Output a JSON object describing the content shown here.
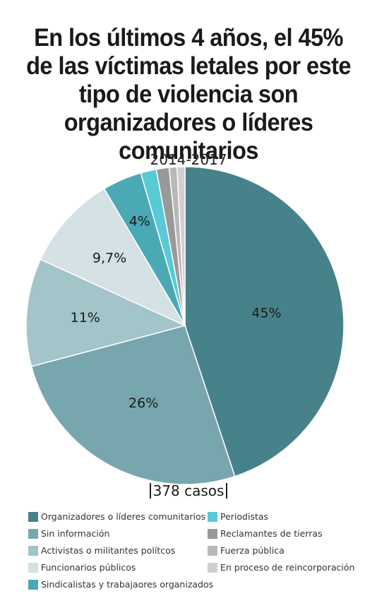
{
  "chart_data": {
    "type": "pie",
    "title": "En los últimos 4 años, el 45% de las víctimas letales por este tipo de violencia son organizadores o líderes comunitarios",
    "subtitle": "2014-2017",
    "total_label": "378 casos",
    "slices": [
      {
        "name": "Organizadores o líderes comunitarios",
        "value": 45,
        "label": "45%",
        "color": "#47828b"
      },
      {
        "name": "Sin información",
        "value": 26,
        "label": "26%",
        "color": "#78a6af"
      },
      {
        "name": "Activistas o militantes polítcos",
        "value": 11,
        "label": "11%",
        "color": "#a3c4c9"
      },
      {
        "name": "Funcionarios públicos",
        "value": 9.7,
        "label": "9,7%",
        "color": "#d4e1e5"
      },
      {
        "name": "Sindicalistas y trabajaores organizados",
        "value": 4,
        "label": "4%",
        "color": "#4aa9b4"
      },
      {
        "name": "Periodistas",
        "value": 1.6,
        "label": "",
        "color": "#5ac9d6"
      },
      {
        "name": "Reclamantes de tierras",
        "value": 1.3,
        "label": "",
        "color": "#999999"
      },
      {
        "name": "Fuerza pública",
        "value": 0.8,
        "label": "",
        "color": "#b8b8b8"
      },
      {
        "name": "En proceso de reincorporación",
        "value": 0.8,
        "label": "",
        "color": "#d0d0d0"
      }
    ],
    "legend_placement": "bottom"
  }
}
